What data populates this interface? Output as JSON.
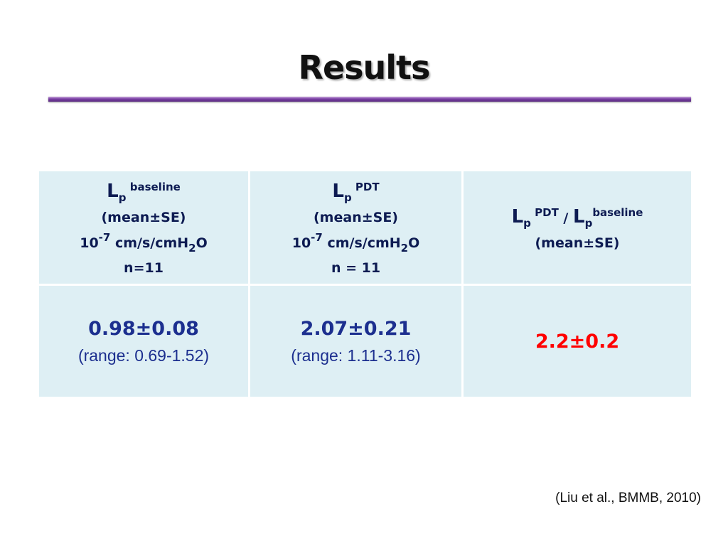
{
  "title": "Results",
  "table": {
    "header": [
      {
        "lines": [
          [
            {
              "text": "L",
              "style": "big"
            },
            {
              "text": "p",
              "style": "sub"
            },
            {
              "text": " baseline",
              "style": "sup"
            }
          ],
          [
            {
              "text": "(mean±SE)"
            }
          ],
          [
            {
              "text": "10"
            },
            {
              "text": "-7",
              "style": "sup"
            },
            {
              "text": " cm/s/cmH"
            },
            {
              "text": "2",
              "style": "sub"
            },
            {
              "text": "O"
            }
          ],
          [
            {
              "text": "n=11"
            }
          ]
        ]
      },
      {
        "lines": [
          [
            {
              "text": "L",
              "style": "big"
            },
            {
              "text": "p",
              "style": "sub"
            },
            {
              "text": " PDT",
              "style": "sup"
            }
          ],
          [
            {
              "text": "(mean±SE)"
            }
          ],
          [
            {
              "text": "10"
            },
            {
              "text": "-7",
              "style": "sup"
            },
            {
              "text": " cm/s/cmH"
            },
            {
              "text": "2",
              "style": "sub"
            },
            {
              "text": "O"
            }
          ],
          [
            {
              "text": "n = 11"
            }
          ]
        ]
      },
      {
        "lines": [
          [
            {
              "text": "L",
              "style": "big"
            },
            {
              "text": "p",
              "style": "sub"
            },
            {
              "text": " PDT",
              "style": "sup"
            },
            {
              "text": " / "
            },
            {
              "text": "L",
              "style": "big"
            },
            {
              "text": "p",
              "style": "sub"
            },
            {
              "text": "baseline",
              "style": "sup"
            }
          ],
          [
            {
              "text": "(mean±SE)"
            }
          ]
        ]
      }
    ],
    "rows": [
      [
        {
          "lines": [
            [
              {
                "text": "0.98±0.08",
                "style": "value"
              }
            ],
            [
              {
                "text": "(range: 0.69-1.52)",
                "style": "range"
              }
            ]
          ]
        },
        {
          "lines": [
            [
              {
                "text": "2.07±0.21",
                "style": "value"
              }
            ],
            [
              {
                "text": "(range: 1.11-3.16)",
                "style": "range"
              }
            ]
          ]
        },
        {
          "lines": [
            [
              {
                "text": "2.2±0.2",
                "style": "highlight"
              }
            ]
          ]
        }
      ]
    ]
  },
  "citation": "(Liu et al., BMMB, 2010)"
}
